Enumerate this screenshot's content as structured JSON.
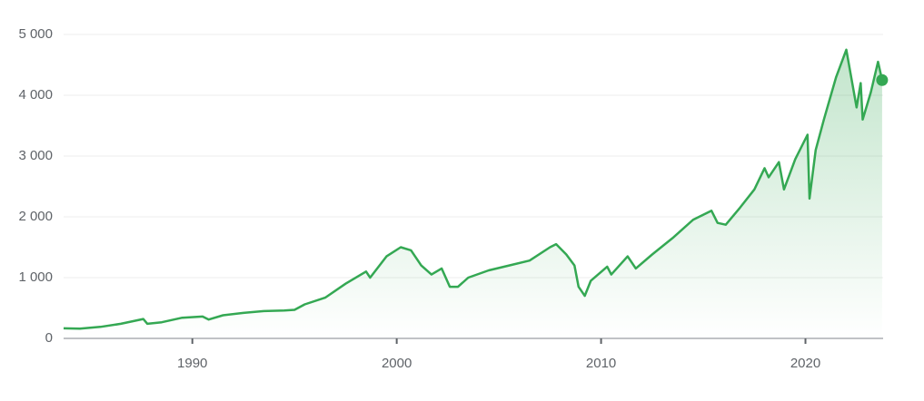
{
  "chart_data": {
    "type": "line",
    "x": [
      1983.7,
      1984.5,
      1985.5,
      1986.5,
      1987.6,
      1987.8,
      1988.5,
      1989.5,
      1990.5,
      1990.8,
      1991.5,
      1992.5,
      1993.5,
      1994.5,
      1995.0,
      1995.5,
      1996.5,
      1997.5,
      1998.5,
      1998.7,
      1999.5,
      2000.2,
      2000.7,
      2001.2,
      2001.7,
      2002.2,
      2002.6,
      2003.0,
      2003.5,
      2004.5,
      2005.5,
      2006.5,
      2007.5,
      2007.8,
      2008.3,
      2008.7,
      2008.9,
      2009.2,
      2009.5,
      2010.3,
      2010.5,
      2011.3,
      2011.7,
      2012.5,
      2013.5,
      2014.5,
      2015.4,
      2015.7,
      2016.1,
      2016.8,
      2017.5,
      2018.0,
      2018.2,
      2018.7,
      2018.95,
      2019.5,
      2020.1,
      2020.2,
      2020.5,
      2020.9,
      2021.5,
      2022.0,
      2022.5,
      2022.7,
      2022.8,
      2023.2,
      2023.55,
      2023.75
    ],
    "values": [
      165,
      160,
      190,
      240,
      320,
      240,
      265,
      340,
      360,
      310,
      380,
      420,
      450,
      460,
      470,
      560,
      670,
      900,
      1100,
      1000,
      1350,
      1500,
      1450,
      1200,
      1050,
      1150,
      850,
      850,
      1000,
      1120,
      1200,
      1280,
      1500,
      1550,
      1380,
      1200,
      850,
      700,
      950,
      1180,
      1050,
      1350,
      1150,
      1380,
      1650,
      1950,
      2100,
      1900,
      1870,
      2150,
      2450,
      2800,
      2650,
      2900,
      2450,
      2950,
      3350,
      2300,
      3100,
      3600,
      4300,
      4750,
      3800,
      4200,
      3600,
      4050,
      4550,
      4250
    ],
    "color": "#34a853",
    "xlim": [
      1983.7,
      2023.8
    ],
    "xticks": [
      1990,
      2000,
      2010,
      2020
    ],
    "ylim": [
      0,
      5000
    ],
    "yticks": [
      0,
      {
        "value": 1000,
        "label": "1 000"
      },
      {
        "value": 2000,
        "label": "2 000"
      },
      {
        "value": 3000,
        "label": "3 000"
      },
      {
        "value": 4000,
        "label": "4 000"
      },
      {
        "value": 5000,
        "label": "5 000"
      }
    ],
    "grid": true
  }
}
